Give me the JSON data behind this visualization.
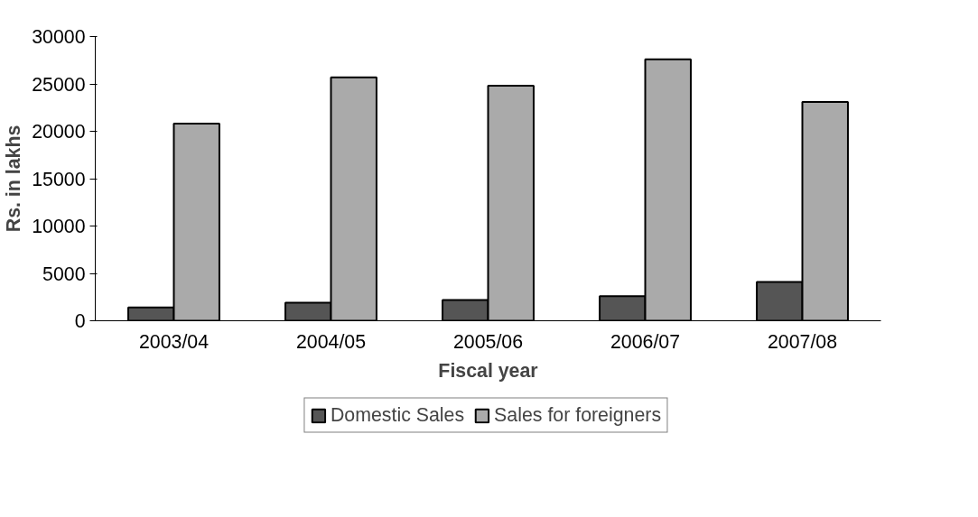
{
  "chart_data": {
    "type": "bar",
    "xlabel": "Fiscal year",
    "ylabel": "Rs. in lakhs",
    "categories": [
      "2003/04",
      "2004/05",
      "2005/06",
      "2006/07",
      "2007/08"
    ],
    "series": [
      {
        "name": "Domestic Sales",
        "color": "#555555",
        "values": [
          1400,
          1900,
          2200,
          2600,
          4100
        ]
      },
      {
        "name": "Sales for foreigners",
        "color": "#aaaaaa",
        "values": [
          20800,
          25700,
          24800,
          27600,
          23100
        ]
      }
    ],
    "ylim": [
      0,
      30000
    ],
    "yticks": [
      0,
      5000,
      10000,
      15000,
      20000,
      25000,
      30000
    ],
    "grid": false,
    "legend": "bottom"
  }
}
